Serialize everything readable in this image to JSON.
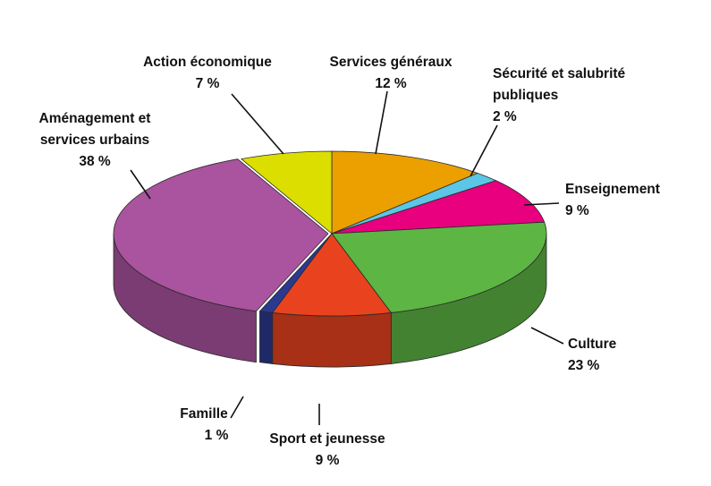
{
  "chart_data": {
    "type": "pie",
    "title": "",
    "slices": [
      {
        "key": "services_generaux",
        "label": [
          "Services généraux"
        ],
        "value_label": "12 %",
        "value": 12,
        "color": "#EBA000"
      },
      {
        "key": "securite",
        "label": [
          "Sécurité et salubrité",
          "publiques"
        ],
        "value_label": "2 %",
        "value": 2,
        "color": "#5BC6E6"
      },
      {
        "key": "enseignement",
        "label": [
          "Enseignement"
        ],
        "value_label": "9 %",
        "value": 9,
        "color": "#E8007E"
      },
      {
        "key": "culture",
        "label": [
          "Culture"
        ],
        "value_label": "23 %",
        "value": 23,
        "color": "#5DB544"
      },
      {
        "key": "sport",
        "label": [
          "Sport et jeunesse"
        ],
        "value_label": "9 %",
        "value": 9,
        "color": "#E8431E"
      },
      {
        "key": "famille",
        "label": [
          "Famille"
        ],
        "value_label": "1 %",
        "value": 1,
        "color": "#2B3990"
      },
      {
        "key": "amenagement",
        "label": [
          "Aménagement et",
          "services urbains"
        ],
        "value_label": "38 %",
        "value": 38,
        "color": "#AA539E"
      },
      {
        "key": "action_eco",
        "label": [
          "Action économique"
        ],
        "value_label": "7 %",
        "value": 7,
        "color": "#DCDE00"
      }
    ],
    "legend": "none",
    "style": "3d"
  }
}
